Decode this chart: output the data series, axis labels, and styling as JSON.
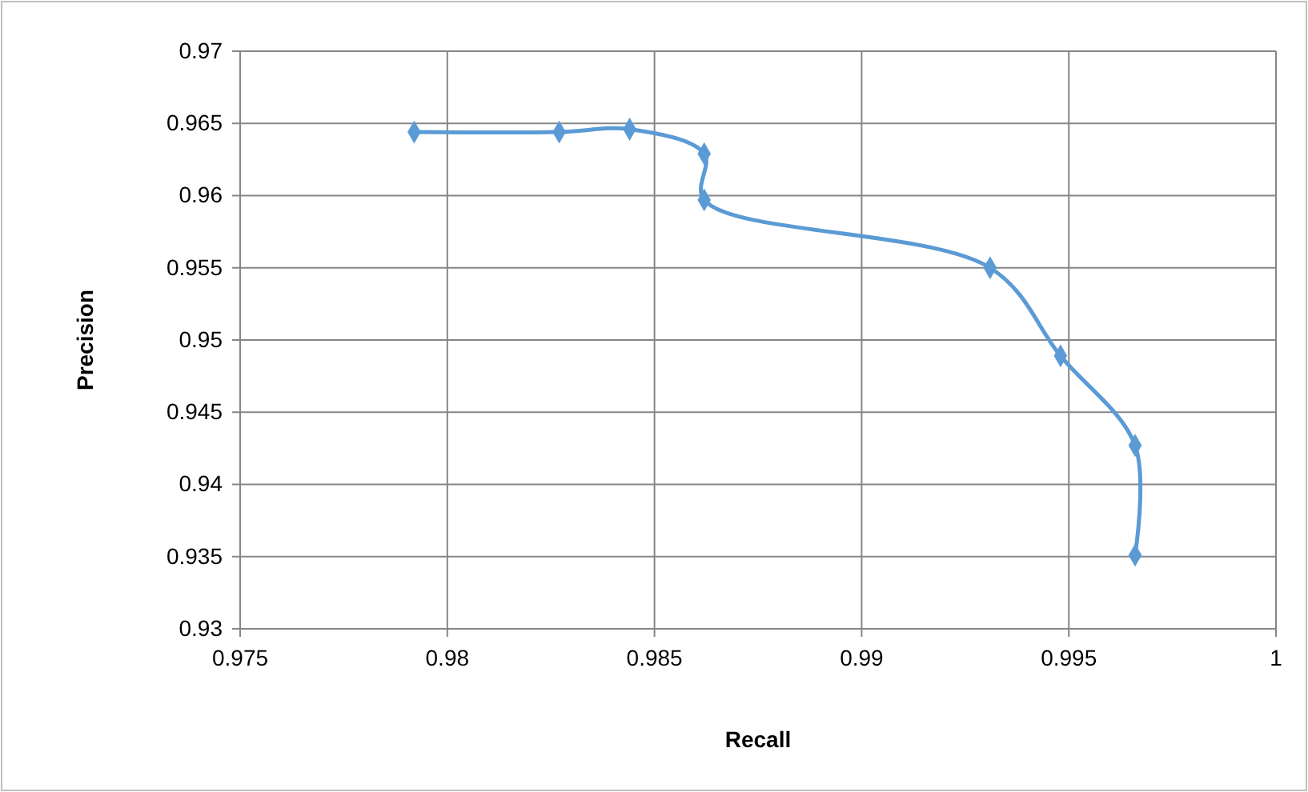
{
  "chart_data": {
    "type": "line",
    "xlabel": "Recall",
    "ylabel": "Precision",
    "x": [
      0.9792,
      0.9827,
      0.9844,
      0.9862,
      0.9862,
      0.9931,
      0.9948,
      0.9966,
      0.9966
    ],
    "series": [
      {
        "color": "#5b9bd5",
        "values": [
          0.9644,
          0.9644,
          0.9646,
          0.9629,
          0.9597,
          0.955,
          0.9489,
          0.9427,
          0.9351
        ]
      }
    ],
    "xlim": [
      0.975,
      1
    ],
    "xticks": [
      0.975,
      0.98,
      0.985,
      0.99,
      0.995,
      1
    ],
    "ylim": [
      0.93,
      0.97
    ],
    "yticks": [
      0.93,
      0.935,
      0.94,
      0.945,
      0.95,
      0.955,
      0.96,
      0.965,
      0.97
    ],
    "grid": true,
    "marker": "diamond",
    "line_style": "solid"
  }
}
